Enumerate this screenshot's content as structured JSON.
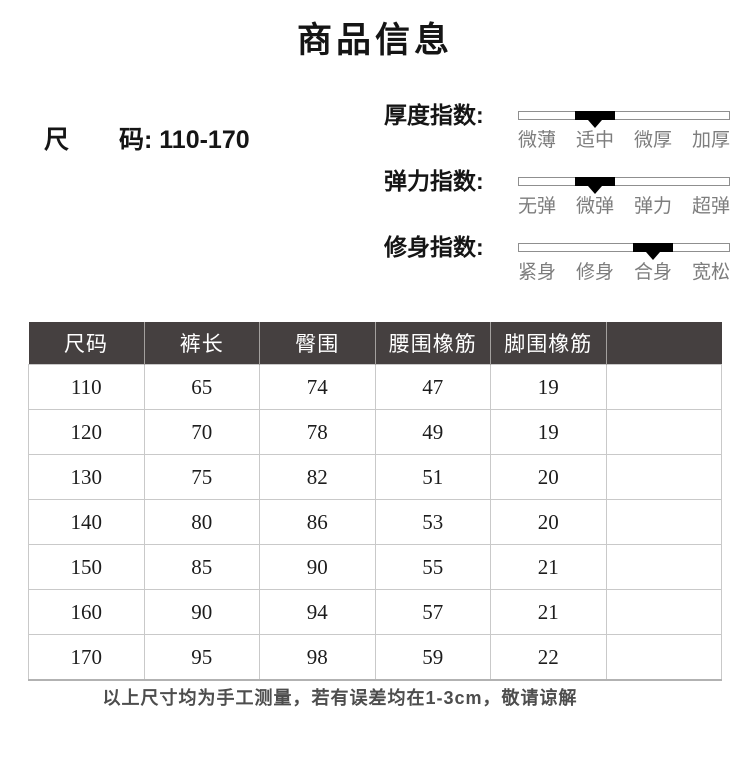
{
  "page": {
    "title": "商品信息",
    "size_text": "尺　　码: 110-170",
    "footer_note": "以上尺寸均为手工测量，若有误差均在1-3cm，敬请谅解"
  },
  "indicators": [
    {
      "title": "厚度指数:",
      "options": [
        "微薄",
        "适中",
        "微厚",
        "加厚"
      ],
      "active_index": 1,
      "active_option": "适中"
    },
    {
      "title": "弹力指数:",
      "options": [
        "无弹",
        "微弹",
        "弹力",
        "超弹"
      ],
      "active_index": 1,
      "active_option": "微弹"
    },
    {
      "title": "修身指数:",
      "options": [
        "紧身",
        "修身",
        "合身",
        "宽松"
      ],
      "active_index": 2,
      "active_option": "合身"
    }
  ],
  "table": {
    "headers": [
      "尺码",
      "裤长",
      "臀围",
      "腰围橡筋",
      "脚围橡筋",
      ""
    ],
    "rows": [
      [
        "110",
        "65",
        "74",
        "47",
        "19",
        ""
      ],
      [
        "120",
        "70",
        "78",
        "49",
        "19",
        ""
      ],
      [
        "130",
        "75",
        "82",
        "51",
        "20",
        ""
      ],
      [
        "140",
        "80",
        "86",
        "53",
        "20",
        ""
      ],
      [
        "150",
        "85",
        "90",
        "55",
        "21",
        ""
      ],
      [
        "160",
        "90",
        "94",
        "57",
        "21",
        ""
      ],
      [
        "170",
        "95",
        "98",
        "59",
        "22",
        ""
      ]
    ]
  },
  "colors": {
    "table_header_bg": "#454040",
    "table_header_text": "#ffffff",
    "marker": "#000000",
    "tick_text": "#7d7d7d",
    "table_border": "#c9c9c9"
  }
}
